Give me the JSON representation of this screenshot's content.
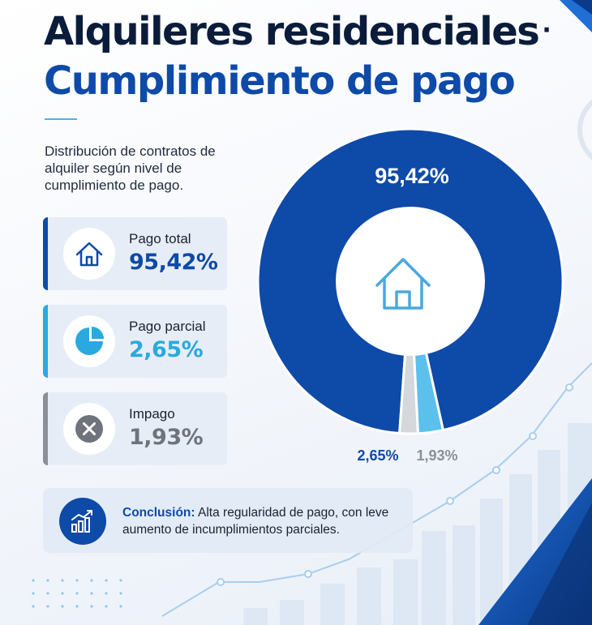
{
  "title": {
    "line1": "Alquileres residenciales",
    "separator": "·",
    "line2": "Cumplimiento de pago"
  },
  "subtitle": "Distribución de contratos de alquiler según nivel de cumplimiento de pago.",
  "cards": [
    {
      "label": "Pago total",
      "value": "95,42%",
      "icon": "house-icon",
      "color": "#0e4aa8"
    },
    {
      "label": "Pago parcial",
      "value": "2,65%",
      "icon": "pie-chart-icon",
      "color": "#29a9e0"
    },
    {
      "label": "Impago",
      "value": "1,93%",
      "icon": "x-circle-icon",
      "color": "#8c8f96"
    }
  ],
  "conclusion": {
    "label": "Conclusión:",
    "text": "Alta regularidad de pago, con leve aumento de incumplimientos parciales.",
    "icon": "bar-chart-trend-icon"
  },
  "chart_data": {
    "type": "pie",
    "variant": "donut",
    "categories": [
      "Pago total",
      "Pago parcial",
      "Impago"
    ],
    "values": [
      95.42,
      2.65,
      1.93
    ],
    "labels": [
      "95,42%",
      "2,65%",
      "1,93%"
    ],
    "colors": [
      "#0e4aa8",
      "#5cc0ec",
      "#d4d7dc"
    ],
    "center_icon": "house-icon",
    "legend": "none"
  }
}
